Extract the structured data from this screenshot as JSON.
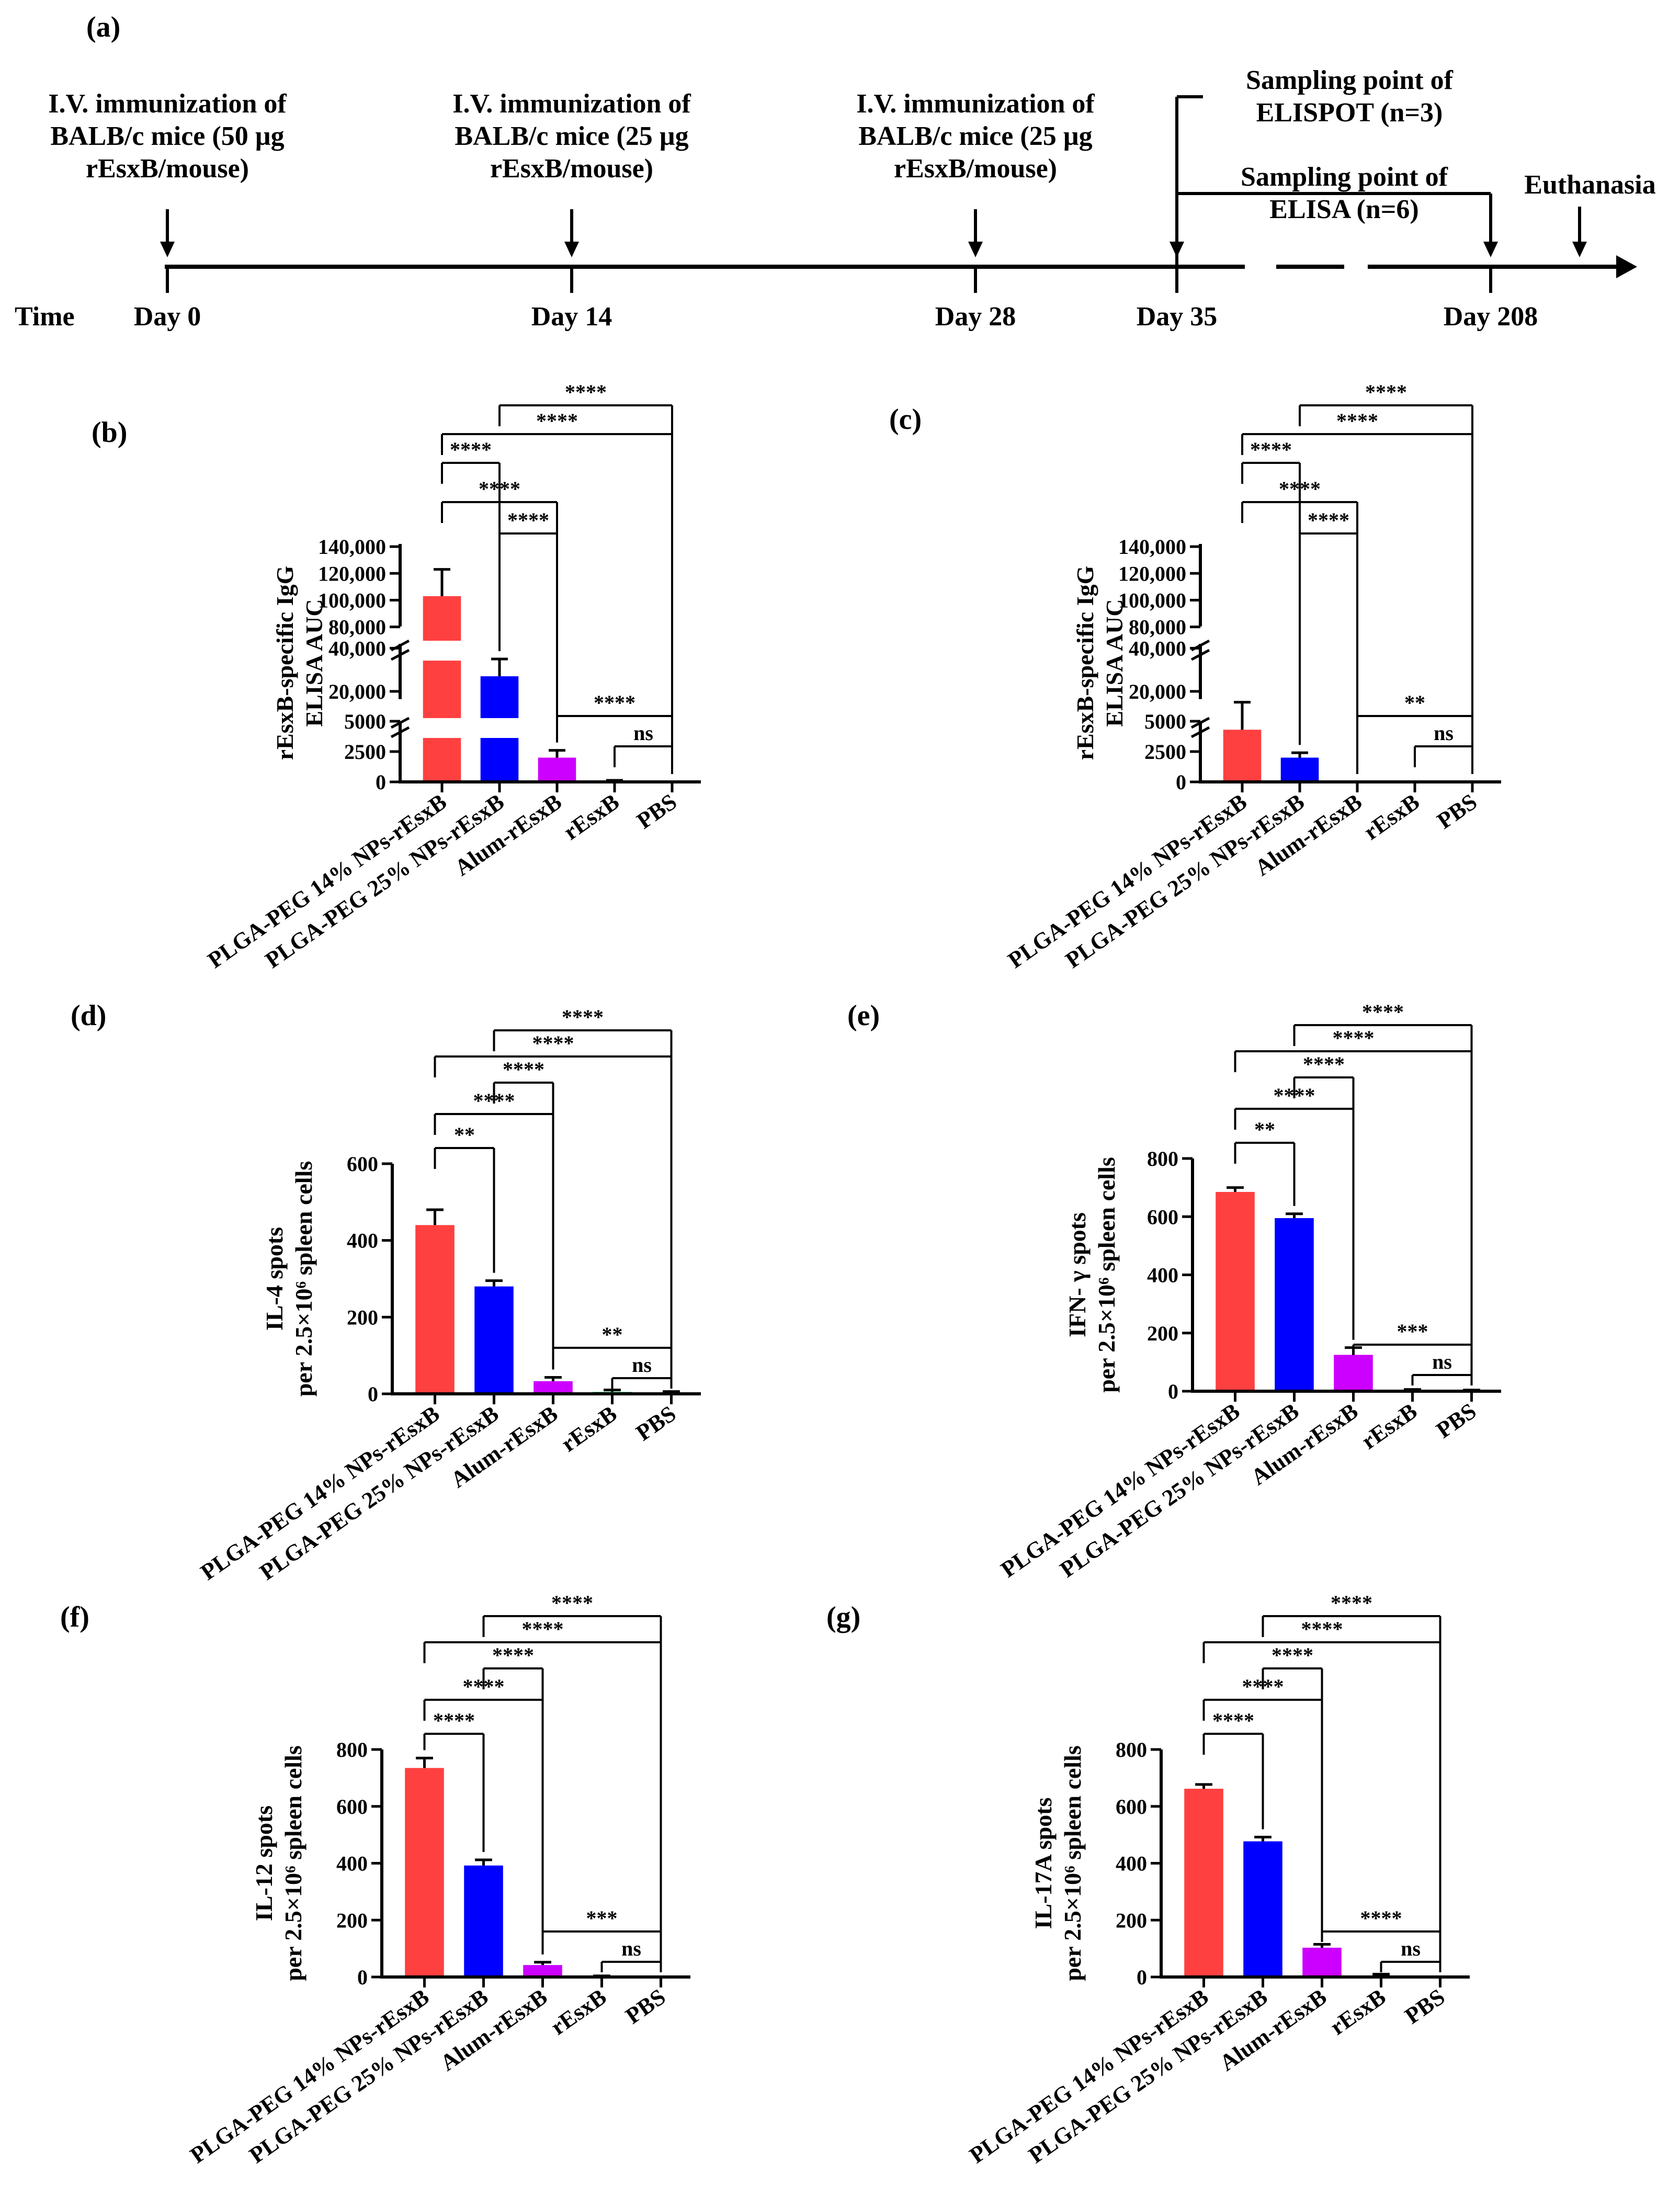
{
  "colors": {
    "PLGA-PEG 14% NPs-rEsxB": "#ff4040",
    "PLGA-PEG 25% NPs-rEsxB": "#0000ff",
    "Alum-rEsxB": "#cc00ff",
    "rEsxB": "#00b050",
    "PBS": "#000000"
  },
  "timeline": {
    "panel": "(a)",
    "time_label": "Time",
    "events": [
      {
        "text": [
          "I.V. immunization of",
          "BALB/c mice (50 µg",
          "rEsxB/mouse)"
        ],
        "day": "Day 0"
      },
      {
        "text": [
          "I.V. immunization of",
          "BALB/c mice (25 µg",
          "rEsxB/mouse)"
        ],
        "day": "Day 14"
      },
      {
        "text": [
          "I.V. immunization of",
          "BALB/c mice (25 µg",
          "rEsxB/mouse)"
        ],
        "day": "Day 28"
      }
    ],
    "sampling_elispot": [
      "Sampling point of",
      "ELISPOT (n=3)"
    ],
    "sampling_elisa": [
      "Sampling point of",
      "ELISA (n=6)"
    ],
    "day35": "Day 35",
    "day208": "Day 208",
    "euthanasia": "Euthanasia"
  },
  "chart_data": [
    {
      "panel": "(b)",
      "type": "bar",
      "broken_axis": true,
      "categories": [
        "PLGA-PEG 14% NPs-rEsxB",
        "PLGA-PEG 25% NPs-rEsxB",
        "Alum-rEsxB",
        "rEsxB",
        "PBS"
      ],
      "values": [
        103000,
        27000,
        2000,
        50,
        0
      ],
      "errors": [
        20000,
        8000,
        600,
        80,
        0
      ],
      "ylabel": [
        "rEsxB-specific IgG",
        "ELISA AUC"
      ],
      "ticks_low": [
        "0",
        "2500",
        "5000"
      ],
      "ticks_mid": [
        "20,000",
        "40,000"
      ],
      "ticks_high": [
        "80,000",
        "100,000",
        "120,000",
        "140,000"
      ],
      "significance": [
        {
          "from": 1,
          "to": 4,
          "label": "****"
        },
        {
          "from": 0,
          "to": 4,
          "label": "****"
        },
        {
          "from": 0,
          "to": 1,
          "label": "****"
        },
        {
          "from": 0,
          "to": 2,
          "label": "****"
        },
        {
          "from": 1,
          "to": 2,
          "label": "****"
        },
        {
          "from": 2,
          "to": 4,
          "label": "****"
        },
        {
          "from": 3,
          "to": 4,
          "label": "ns"
        }
      ]
    },
    {
      "panel": "(c)",
      "type": "bar",
      "broken_axis": true,
      "categories": [
        "PLGA-PEG 14% NPs-rEsxB",
        "PLGA-PEG 25% NPs-rEsxB",
        "Alum-rEsxB",
        "rEsxB",
        "PBS"
      ],
      "values": [
        4300,
        2000,
        0,
        0,
        0
      ],
      "errors": [
        900,
        400,
        0,
        0,
        0
      ],
      "ylabel": [
        "rEsxB-specific IgG",
        "ELISA AUC"
      ],
      "ticks_low": [
        "0",
        "2500",
        "5000"
      ],
      "ticks_mid": [
        "20,000",
        "40,000"
      ],
      "ticks_high": [
        "80,000",
        "100,000",
        "120,000",
        "140,000"
      ],
      "significance": [
        {
          "from": 1,
          "to": 4,
          "label": "****"
        },
        {
          "from": 0,
          "to": 4,
          "label": "****"
        },
        {
          "from": 0,
          "to": 1,
          "label": "****"
        },
        {
          "from": 0,
          "to": 2,
          "label": "****"
        },
        {
          "from": 1,
          "to": 2,
          "label": "****"
        },
        {
          "from": 2,
          "to": 4,
          "label": "**"
        },
        {
          "from": 3,
          "to": 4,
          "label": "ns"
        }
      ]
    },
    {
      "panel": "(d)",
      "type": "bar",
      "categories": [
        "PLGA-PEG 14% NPs-rEsxB",
        "PLGA-PEG 25% NPs-rEsxB",
        "Alum-rEsxB",
        "rEsxB",
        "PBS"
      ],
      "values": [
        440,
        280,
        33,
        5,
        3
      ],
      "errors": [
        40,
        15,
        10,
        5,
        3
      ],
      "ylabel": [
        "IL-4 spots",
        "per 2.5×10⁶ spleen cells"
      ],
      "ylim": [
        0,
        600
      ],
      "yticks": [
        0,
        200,
        400,
        600
      ],
      "significance": [
        {
          "from": 1,
          "to": 4,
          "label": "****"
        },
        {
          "from": 0,
          "to": 4,
          "label": "****"
        },
        {
          "from": 1,
          "to": 2,
          "label": "****"
        },
        {
          "from": 0,
          "to": 2,
          "label": "****"
        },
        {
          "from": 0,
          "to": 1,
          "label": "**"
        },
        {
          "from": 2,
          "to": 4,
          "label": "**"
        },
        {
          "from": 3,
          "to": 4,
          "label": "ns"
        }
      ]
    },
    {
      "panel": "(e)",
      "type": "bar",
      "categories": [
        "PLGA-PEG 14% NPs-rEsxB",
        "PLGA-PEG 25% NPs-rEsxB",
        "Alum-rEsxB",
        "rEsxB",
        "PBS"
      ],
      "values": [
        685,
        595,
        125,
        3,
        2
      ],
      "errors": [
        15,
        15,
        25,
        3,
        2
      ],
      "ylabel": [
        "IFN- γ  spots",
        "per 2.5×10⁶ spleen cells"
      ],
      "ylim": [
        0,
        800
      ],
      "yticks": [
        0,
        200,
        400,
        600,
        800
      ],
      "significance": [
        {
          "from": 1,
          "to": 4,
          "label": "****"
        },
        {
          "from": 0,
          "to": 4,
          "label": "****"
        },
        {
          "from": 1,
          "to": 2,
          "label": "****"
        },
        {
          "from": 0,
          "to": 2,
          "label": "****"
        },
        {
          "from": 0,
          "to": 1,
          "label": "**"
        },
        {
          "from": 2,
          "to": 4,
          "label": "***"
        },
        {
          "from": 3,
          "to": 4,
          "label": "ns"
        }
      ]
    },
    {
      "panel": "(f)",
      "type": "bar",
      "categories": [
        "PLGA-PEG 14% NPs-rEsxB",
        "PLGA-PEG 25% NPs-rEsxB",
        "Alum-rEsxB",
        "rEsxB",
        "PBS"
      ],
      "values": [
        735,
        392,
        42,
        2,
        0
      ],
      "errors": [
        35,
        20,
        10,
        2,
        0
      ],
      "ylabel": [
        "IL-12 spots",
        "per 2.5×10⁶ spleen cells"
      ],
      "ylim": [
        0,
        800
      ],
      "yticks": [
        0,
        200,
        400,
        600,
        800
      ],
      "significance": [
        {
          "from": 1,
          "to": 4,
          "label": "****"
        },
        {
          "from": 0,
          "to": 4,
          "label": "****"
        },
        {
          "from": 1,
          "to": 2,
          "label": "****"
        },
        {
          "from": 0,
          "to": 2,
          "label": "****"
        },
        {
          "from": 0,
          "to": 1,
          "label": "****"
        },
        {
          "from": 2,
          "to": 4,
          "label": "***"
        },
        {
          "from": 3,
          "to": 4,
          "label": "ns"
        }
      ]
    },
    {
      "panel": "(g)",
      "type": "bar",
      "categories": [
        "PLGA-PEG 14% NPs-rEsxB",
        "PLGA-PEG 25% NPs-rEsxB",
        "Alum-rEsxB",
        "rEsxB",
        "PBS"
      ],
      "values": [
        662,
        477,
        103,
        5,
        0
      ],
      "errors": [
        15,
        15,
        12,
        5,
        0
      ],
      "ylabel": [
        "IL-17A spots",
        "per 2.5×10⁶ spleen cells"
      ],
      "ylim": [
        0,
        800
      ],
      "yticks": [
        0,
        200,
        400,
        600,
        800
      ],
      "significance": [
        {
          "from": 1,
          "to": 4,
          "label": "****"
        },
        {
          "from": 0,
          "to": 4,
          "label": "****"
        },
        {
          "from": 1,
          "to": 2,
          "label": "****"
        },
        {
          "from": 0,
          "to": 2,
          "label": "****"
        },
        {
          "from": 0,
          "to": 1,
          "label": "****"
        },
        {
          "from": 2,
          "to": 4,
          "label": "****"
        },
        {
          "from": 3,
          "to": 4,
          "label": "ns"
        }
      ]
    }
  ]
}
